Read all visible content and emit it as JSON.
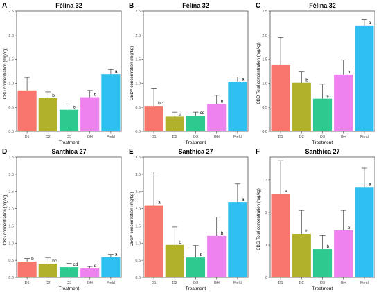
{
  "colors": {
    "D1": "#F8766D",
    "D2": "#B1B12A",
    "D3": "#2DC98F",
    "GH": "#EE82EE",
    "Field": "#2FBFF1",
    "axis": "#4d4d4d",
    "error_bar": "#3a3a3a"
  },
  "chart_data": [
    {
      "panel_letter": "A",
      "type": "bar",
      "title": "Félina 32",
      "xlabel": "Treatment",
      "ylabel": "CBD concentration (mg/kg)",
      "categories": [
        "D1",
        "D2",
        "D3",
        "GH",
        "Field"
      ],
      "values": [
        0.85,
        0.69,
        0.45,
        0.71,
        1.19
      ],
      "errors": [
        0.27,
        0.13,
        0.12,
        0.14,
        0.1
      ],
      "letters": [
        "",
        "b",
        "c",
        "b",
        "a"
      ],
      "ylim": [
        0,
        2.5
      ],
      "yticks": [
        0.0,
        0.5,
        1.0,
        1.5,
        2.0,
        2.5
      ],
      "ytick_labels": [
        "0.0",
        "0.5",
        "1.0",
        "1.5",
        "2.0",
        "2.5"
      ],
      "grid": false,
      "legend": "none"
    },
    {
      "panel_letter": "B",
      "type": "bar",
      "title": "Félina 32",
      "xlabel": "Treatment",
      "ylabel": "CBDA concentration (mg/kg)",
      "categories": [
        "D1",
        "D2",
        "D3",
        "GH",
        "Field"
      ],
      "values": [
        0.53,
        0.31,
        0.33,
        0.57,
        1.03
      ],
      "errors": [
        0.37,
        0.09,
        0.07,
        0.18,
        0.1
      ],
      "letters": [
        "bc",
        "d",
        "cd",
        "b",
        "a"
      ],
      "ylim": [
        0,
        2.5
      ],
      "yticks": [
        0.0,
        0.5,
        1.0,
        1.5,
        2.0,
        2.5
      ],
      "ytick_labels": [
        "0.0",
        "0.5",
        "1.0",
        "1.5",
        "2.0",
        "2.5"
      ],
      "grid": false,
      "legend": "none"
    },
    {
      "panel_letter": "C",
      "type": "bar",
      "title": "Félina 32",
      "xlabel": "Treatment",
      "ylabel": "CBD Total concentration (mg/kg)",
      "categories": [
        "D1",
        "D2",
        "D3",
        "GH",
        "Field"
      ],
      "values": [
        1.38,
        1.01,
        0.68,
        1.18,
        2.2
      ],
      "errors": [
        0.57,
        0.23,
        0.3,
        0.31,
        0.12
      ],
      "letters": [
        "",
        "b",
        "c",
        "b",
        "a"
      ],
      "ylim": [
        0,
        2.5
      ],
      "yticks": [
        0.0,
        0.5,
        1.0,
        1.5,
        2.0,
        2.5
      ],
      "ytick_labels": [
        "0.0",
        "0.5",
        "1.0",
        "1.5",
        "2.0",
        "2.5"
      ],
      "grid": false,
      "legend": "none"
    },
    {
      "panel_letter": "D",
      "type": "bar",
      "title": "Santhica 27",
      "xlabel": "Treatment",
      "ylabel": "CBG concentration (mg/kg)",
      "categories": [
        "D1",
        "D2",
        "D3",
        "GH",
        "Field"
      ],
      "values": [
        0.46,
        0.4,
        0.3,
        0.26,
        0.59
      ],
      "errors": [
        0.09,
        0.18,
        0.11,
        0.06,
        0.08
      ],
      "letters": [
        "b",
        "bc",
        "cd",
        "d",
        "a"
      ],
      "ylim": [
        0,
        3.5
      ],
      "yticks": [
        0.0,
        0.5,
        1.0,
        1.5,
        2.0,
        2.5,
        3.0,
        3.5
      ],
      "ytick_labels": [
        "0.0",
        "0.5",
        "1.0",
        "1.5",
        "2.0",
        "2.5",
        "3.0",
        "3.5"
      ],
      "grid": false,
      "legend": "none"
    },
    {
      "panel_letter": "E",
      "type": "bar",
      "title": "Santhica 27",
      "xlabel": "Treatment",
      "ylabel": "CBGA concentration (mg/kg)",
      "categories": [
        "D1",
        "D2",
        "D3",
        "GH",
        "Field"
      ],
      "values": [
        2.1,
        0.95,
        0.58,
        1.21,
        2.19
      ],
      "errors": [
        0.97,
        0.52,
        0.35,
        0.55,
        0.53
      ],
      "letters": [
        "a",
        "b",
        "b",
        "b",
        "a"
      ],
      "ylim": [
        0,
        3.5
      ],
      "yticks": [
        0.0,
        0.5,
        1.0,
        1.5,
        2.0,
        2.5,
        3.0,
        3.5
      ],
      "ytick_labels": [
        "0.0",
        "0.5",
        "1.0",
        "1.5",
        "2.0",
        "2.5",
        "3.0",
        "3.5"
      ],
      "grid": false,
      "legend": "none"
    },
    {
      "panel_letter": "F",
      "type": "bar",
      "title": "Santhica 27",
      "xlabel": "Treatment",
      "ylabel": "CBG Total concentration (mg/kg)",
      "categories": [
        "D1",
        "D2",
        "D3",
        "GH",
        "Field"
      ],
      "values": [
        2.57,
        1.34,
        0.87,
        1.45,
        2.78
      ],
      "errors": [
        1.02,
        0.72,
        0.42,
        0.61,
        0.58
      ],
      "letters": [
        "a",
        "b",
        "b",
        "b",
        "a"
      ],
      "ylim": [
        0,
        3.7
      ],
      "yticks": [
        0,
        1,
        2,
        3
      ],
      "ytick_labels": [
        "0",
        "1",
        "2",
        "3"
      ],
      "grid": false,
      "legend": "none"
    }
  ]
}
